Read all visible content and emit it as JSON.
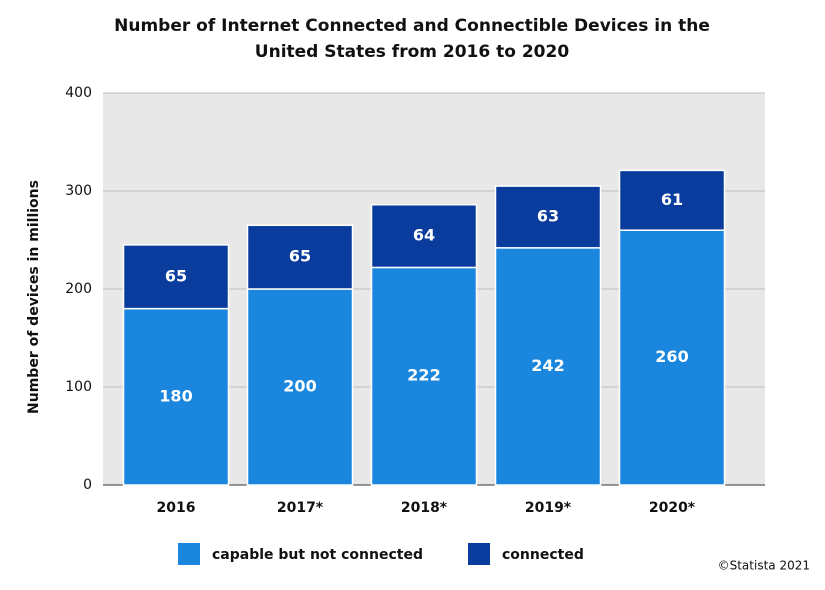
{
  "chart_data": {
    "type": "stacked_bar",
    "title": "Number of Internet Connected and Connectible Devices in the United States from 2016 to 2020",
    "y_label": "Number of devices in millions",
    "categories": [
      "2016",
      "2017*",
      "2018*",
      "2019*",
      "2020*"
    ],
    "series": [
      {
        "name": "capable but not connected",
        "color": "#1a86de",
        "values": [
          180,
          200,
          222,
          242,
          260
        ]
      },
      {
        "name": "connected",
        "color": "#0a3c9e",
        "values": [
          65,
          65,
          64,
          63,
          61
        ]
      }
    ],
    "ylim": [
      0,
      400
    ],
    "yticks": [
      0,
      100,
      200,
      300,
      400
    ],
    "grid": true,
    "legend": "bottom",
    "credit": "©Statista 2021"
  }
}
